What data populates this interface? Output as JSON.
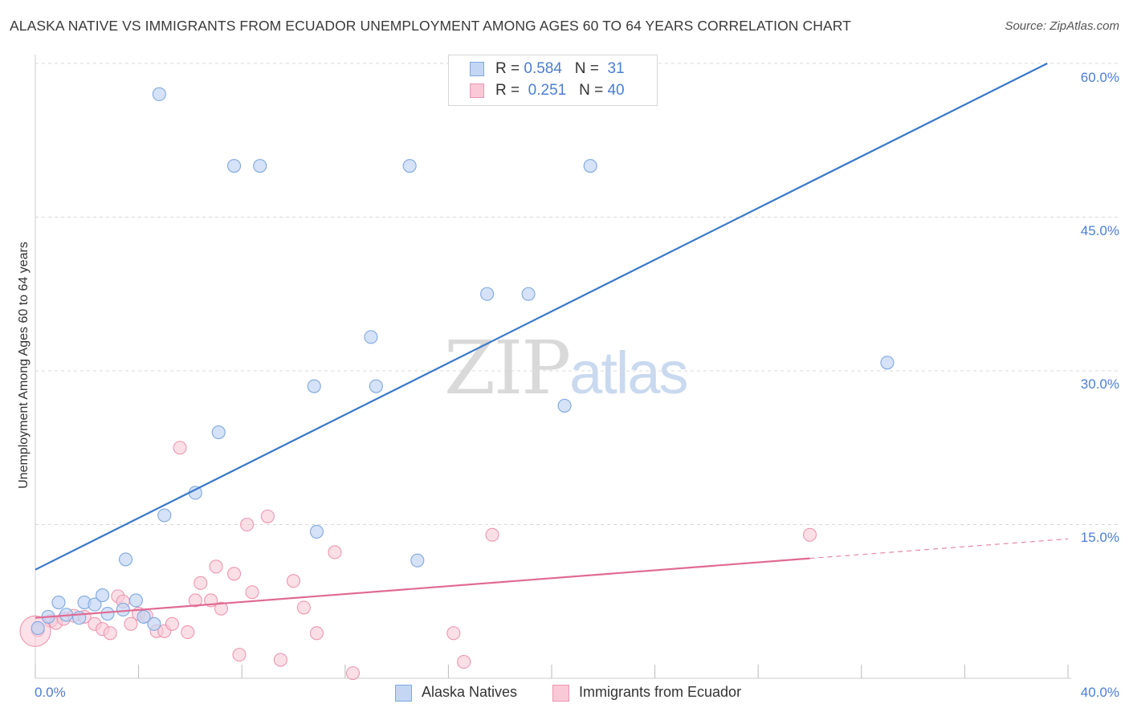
{
  "title": "ALASKA NATIVE VS IMMIGRANTS FROM ECUADOR UNEMPLOYMENT AMONG AGES 60 TO 64 YEARS CORRELATION CHART",
  "source": "Source: ZipAtlas.com",
  "watermark": {
    "zip": "ZIP",
    "atlas": "atlas"
  },
  "legend": {
    "r_label": "R =",
    "n_label": "N =",
    "series1": {
      "r": "0.584",
      "n": "31"
    },
    "series2": {
      "r": "0.251",
      "n": "40"
    }
  },
  "colors": {
    "blue_fill": "#c3d6f4",
    "blue_stroke": "#7ea8e0",
    "blue_line": "#3a78c8",
    "pink_fill": "#f9c9d7",
    "pink_stroke": "#ec96b1",
    "pink_line": "#e06a94",
    "grid": "#d8d8d8",
    "tick_text": "#4a7fd1"
  },
  "chart_data": {
    "type": "scatter",
    "title": "ALASKA NATIVE VS IMMIGRANTS FROM ECUADOR UNEMPLOYMENT AMONG AGES 60 TO 64 YEARS CORRELATION CHART",
    "xlabel": "",
    "ylabel": "Unemployment Among Ages 60 to 64 years",
    "xlim": [
      0,
      40
    ],
    "ylim": [
      0,
      60
    ],
    "x_tick_labels": [
      "0.0%",
      "40.0%"
    ],
    "y_ticks": [
      15,
      30,
      45,
      60
    ],
    "y_tick_labels": [
      "15.0%",
      "30.0%",
      "45.0%",
      "60.0%"
    ],
    "grid": true,
    "legend_position": "top-center",
    "series": [
      {
        "name": "Alaska Natives",
        "r": 0.584,
        "n": 31,
        "trend": {
          "x0": 0,
          "y0": 10.6,
          "x1": 39.2,
          "y1": 60.0
        },
        "points": [
          [
            0.1,
            4.9
          ],
          [
            0.5,
            6.0
          ],
          [
            0.9,
            7.4
          ],
          [
            1.2,
            6.2
          ],
          [
            1.7,
            5.9
          ],
          [
            1.9,
            7.4
          ],
          [
            2.3,
            7.2
          ],
          [
            2.6,
            8.1
          ],
          [
            2.8,
            6.3
          ],
          [
            3.4,
            6.7
          ],
          [
            3.5,
            11.6
          ],
          [
            3.9,
            7.6
          ],
          [
            4.2,
            6.0
          ],
          [
            4.6,
            5.3
          ],
          [
            4.8,
            57.0
          ],
          [
            5.0,
            15.9
          ],
          [
            6.2,
            18.1
          ],
          [
            7.1,
            24.0
          ],
          [
            7.7,
            50.0
          ],
          [
            8.7,
            50.0
          ],
          [
            10.8,
            28.5
          ],
          [
            10.9,
            14.3
          ],
          [
            13.0,
            33.3
          ],
          [
            13.2,
            28.5
          ],
          [
            14.5,
            50.0
          ],
          [
            14.8,
            11.5
          ],
          [
            17.5,
            37.5
          ],
          [
            19.1,
            37.5
          ],
          [
            20.5,
            26.6
          ],
          [
            21.5,
            50.0
          ],
          [
            33.0,
            30.8
          ]
        ]
      },
      {
        "name": "Immigrants from Ecuador",
        "r": 0.251,
        "n": 40,
        "trend": {
          "x0": 0,
          "y0": 5.9,
          "x1": 30.0,
          "y1": 11.7
        },
        "trend_dashed": {
          "x0": 30.0,
          "y0": 11.7,
          "x1": 40.0,
          "y1": 13.6
        },
        "points": [
          [
            0.1,
            4.7
          ],
          [
            0.6,
            5.6
          ],
          [
            0.8,
            5.4
          ],
          [
            1.1,
            5.8
          ],
          [
            1.5,
            6.1
          ],
          [
            1.9,
            6.0
          ],
          [
            2.3,
            5.3
          ],
          [
            2.6,
            4.8
          ],
          [
            2.9,
            4.4
          ],
          [
            3.2,
            8.0
          ],
          [
            3.4,
            7.5
          ],
          [
            3.7,
            5.3
          ],
          [
            4.0,
            6.3
          ],
          [
            4.3,
            6.1
          ],
          [
            4.7,
            4.6
          ],
          [
            5.0,
            4.6
          ],
          [
            5.3,
            5.3
          ],
          [
            5.6,
            22.5
          ],
          [
            5.9,
            4.5
          ],
          [
            6.2,
            7.6
          ],
          [
            6.4,
            9.3
          ],
          [
            6.8,
            7.6
          ],
          [
            7.0,
            10.9
          ],
          [
            7.2,
            6.8
          ],
          [
            7.7,
            10.2
          ],
          [
            7.9,
            2.3
          ],
          [
            8.2,
            15.0
          ],
          [
            8.4,
            8.4
          ],
          [
            9.0,
            15.8
          ],
          [
            9.5,
            1.8
          ],
          [
            10.0,
            9.5
          ],
          [
            10.4,
            6.9
          ],
          [
            10.9,
            4.4
          ],
          [
            11.6,
            12.3
          ],
          [
            12.3,
            0.5
          ],
          [
            16.2,
            4.4
          ],
          [
            16.6,
            1.6
          ],
          [
            17.7,
            14.0
          ],
          [
            30.0,
            14.0
          ],
          [
            0.0,
            4.6
          ]
        ]
      }
    ]
  },
  "bottom_legend": [
    "Alaska Natives",
    "Immigrants from Ecuador"
  ]
}
